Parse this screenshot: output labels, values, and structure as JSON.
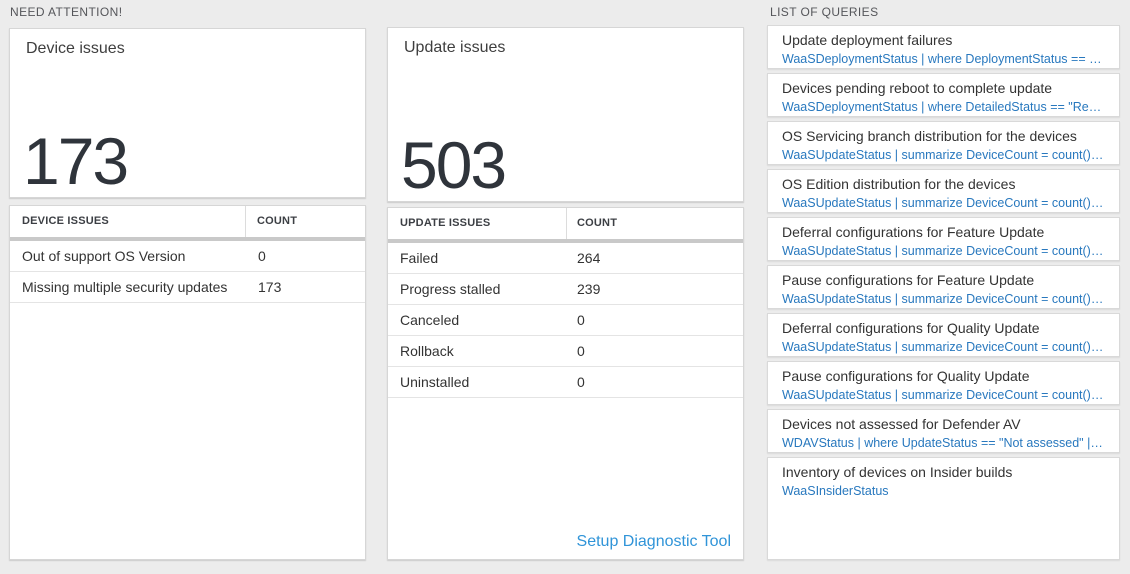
{
  "page": {
    "background": "#ececec",
    "query_blue": "#2878be",
    "link_blue": "#3094d8",
    "number_color": "#2f343b"
  },
  "need_attention": {
    "label": "NEED ATTENTION!",
    "device_tile": {
      "title": "Device issues",
      "value": "173"
    },
    "device_table": {
      "columns": [
        "DEVICE ISSUES",
        "COUNT"
      ],
      "rows": [
        {
          "issue": "Out of support OS Version",
          "count": "0"
        },
        {
          "issue": "Missing multiple security updates",
          "count": "173"
        }
      ]
    },
    "update_tile": {
      "title": "Update issues",
      "value": "503"
    },
    "update_table": {
      "columns": [
        "UPDATE ISSUES",
        "COUNT"
      ],
      "rows": [
        {
          "issue": "Failed",
          "count": "264"
        },
        {
          "issue": "Progress stalled",
          "count": "239"
        },
        {
          "issue": "Canceled",
          "count": "0"
        },
        {
          "issue": "Rollback",
          "count": "0"
        },
        {
          "issue": "Uninstalled",
          "count": "0"
        }
      ],
      "footer_link": "Setup Diagnostic Tool"
    }
  },
  "list_of_queries": {
    "label": "LIST OF QUERIES",
    "items": [
      {
        "title": "Update deployment failures",
        "query": "WaaSDeploymentStatus | where DeploymentStatus == \"Failed\" |..."
      },
      {
        "title": "Devices pending reboot to complete update",
        "query": "WaaSDeploymentStatus | where DetailedStatus == \"Reboot pend..."
      },
      {
        "title": "OS Servicing branch distribution for the devices",
        "query": "WaaSUpdateStatus | summarize DeviceCount = count() by OSSer..."
      },
      {
        "title": "OS Edition distribution for the devices",
        "query": "WaaSUpdateStatus | summarize DeviceCount = count() by OSEdit..."
      },
      {
        "title": "Deferral configurations for Feature Update",
        "query": "WaaSUpdateStatus | summarize DeviceCount = count() by Featur..."
      },
      {
        "title": "Pause configurations for Feature Update",
        "query": "WaaSUpdateStatus | summarize DeviceCount = count() by Featur..."
      },
      {
        "title": "Deferral configurations for Quality Update",
        "query": "WaaSUpdateStatus | summarize DeviceCount = count() by Qualit..."
      },
      {
        "title": "Pause configurations for Quality Update",
        "query": "WaaSUpdateStatus | summarize DeviceCount = count() by Qualit..."
      },
      {
        "title": "Devices not assessed for Defender AV",
        "query": "WDAVStatus | where UpdateStatus == \"Not assessed\" | render ta..."
      },
      {
        "title": "Inventory of devices on Insider builds",
        "query": "WaaSInsiderStatus"
      }
    ]
  }
}
